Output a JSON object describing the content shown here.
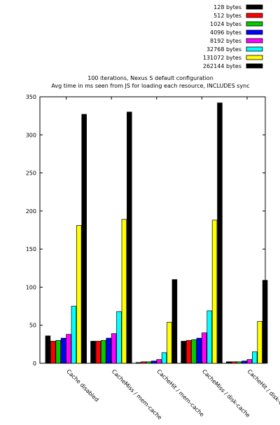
{
  "chart_data": {
    "type": "bar",
    "title_lines": [
      "100 iterations, Nexus S default configuration",
      "Avg time in ms seen from JS for loading each resource, INCLUDES sync"
    ],
    "xlabel": "",
    "ylabel": "",
    "ylim": [
      0,
      350
    ],
    "yticks": [
      0,
      50,
      100,
      150,
      200,
      250,
      300,
      350
    ],
    "grid": false,
    "legend_position": "top-right",
    "categories": [
      "Cache disabled",
      "CacheMiss / mem-cache",
      "CacheHit / mem-cache",
      "CacheMiss / disk-cache",
      "CacheHit / disk-cache"
    ],
    "series": [
      {
        "name": "128 bytes",
        "color": "#000000",
        "values": [
          36,
          29,
          1,
          29,
          2
        ]
      },
      {
        "name": "512 bytes",
        "color": "#ff0000",
        "values": [
          29,
          29,
          2,
          30,
          2
        ]
      },
      {
        "name": "1024 bytes",
        "color": "#00cc00",
        "values": [
          30,
          30,
          2,
          31,
          2
        ]
      },
      {
        "name": "4096 bytes",
        "color": "#0000ff",
        "values": [
          33,
          33,
          3,
          33,
          3
        ]
      },
      {
        "name": "8192 bytes",
        "color": "#ff00ff",
        "values": [
          38,
          39,
          5,
          40,
          5
        ]
      },
      {
        "name": "32768 bytes",
        "color": "#00ffff",
        "values": [
          75,
          68,
          14,
          69,
          15
        ]
      },
      {
        "name": "131072 bytes",
        "color": "#ffff00",
        "values": [
          181,
          189,
          54,
          188,
          55
        ]
      },
      {
        "name": "262144 bytes",
        "color": "#000000",
        "values": [
          327,
          330,
          110,
          342,
          109
        ]
      }
    ]
  }
}
